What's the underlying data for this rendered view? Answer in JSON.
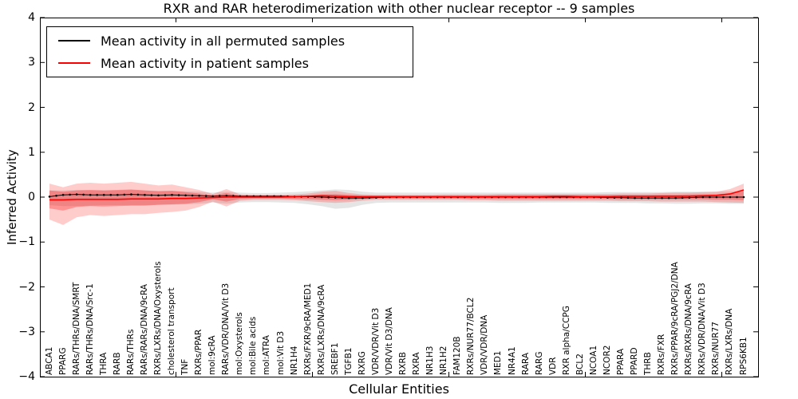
{
  "figure": {
    "title": "RXR and RAR heterodimerization with other nuclear receptor -- 9 samples",
    "xlabel": "Cellular Entities",
    "ylabel": "Inferred Activity"
  },
  "legend": {
    "entries": [
      {
        "label": "Mean activity in all permuted samples",
        "color": "#000000"
      },
      {
        "label": "Mean activity in patient samples",
        "color": "#ff0000"
      }
    ]
  },
  "chart_data": {
    "type": "line",
    "title": "RXR and RAR heterodimerization with other nuclear receptor -- 9 samples",
    "xlabel": "Cellular Entities",
    "ylabel": "Inferred Activity",
    "ylim": [
      -4,
      4
    ],
    "yticks": [
      4,
      3,
      2,
      1,
      0,
      -1,
      -2,
      -3,
      -4
    ],
    "ytick_labels": [
      "4",
      "3",
      "2",
      "1",
      "0",
      "−1",
      "−2",
      "−3",
      "−4"
    ],
    "grid": false,
    "legend_position": "upper left",
    "colors": {
      "permuted_line": "#000000",
      "patient_line": "#ff0000",
      "permuted_band": "#000000",
      "patient_band": "#ff0000"
    },
    "categories": [
      "ABCA1",
      "PPARG",
      "RARs/THRs/DNA/SMRT",
      "RARs/THRs/DNA/Src-1",
      "THRA",
      "RARB",
      "RARs/THRs",
      "RARs/RARs/DNA/9cRA",
      "RXRs/LXRs/DNA/Oxysterols",
      "cholesterol transport",
      "TNF",
      "RXRs/PPAR",
      "mol:9cRA",
      "RARs/VDR/DNA/Vit D3",
      "mol:Oxysterols",
      "mol:Bile acids",
      "mol:ATRA",
      "mol:Vit D3",
      "NR1H4",
      "RXRs/FXR/9cRA/MED1",
      "RXRs/LXRs/DNA/9cRA",
      "SREBF1",
      "TGFB1",
      "RXRG",
      "VDR/VDR/Vit D3",
      "VDR/Vit D3/DNA",
      "RXRB",
      "RXRA",
      "NR1H3",
      "NR1H2",
      "FAM120B",
      "RXRs/NUR77/BCL2",
      "VDR/VDR/DNA",
      "MED1",
      "NR4A1",
      "RARA",
      "RARG",
      "VDR",
      "RXR alpha/CCPG",
      "BCL2",
      "NCOA1",
      "NCOR2",
      "PPARA",
      "PPARD",
      "THRB",
      "RXRs/FXR",
      "RXRs/PPAR/9cRA/PGJ2/DNA",
      "RXRs/RXRs/DNA/9cRA",
      "RXRs/VDR/DNA/Vit D3",
      "RXRs/NUR77",
      "RXRs/LXRs/DNA",
      "RPS6KB1"
    ],
    "series": [
      {
        "name": "Mean activity in all permuted samples",
        "color": "#000000",
        "style": "solid-with-dot-markers",
        "values": [
          0.01,
          0.05,
          0.06,
          0.05,
          0.05,
          0.05,
          0.06,
          0.05,
          0.04,
          0.05,
          0.04,
          0.03,
          0.02,
          0.03,
          0.02,
          0.02,
          0.02,
          0.02,
          0.01,
          0.01,
          0.0,
          -0.01,
          -0.02,
          -0.02,
          -0.01,
          0.0,
          0.0,
          0.0,
          0.0,
          0.0,
          0.0,
          0.0,
          0.0,
          0.0,
          0.0,
          0.0,
          0.0,
          0.0,
          0.0,
          0.0,
          0.0,
          -0.01,
          -0.01,
          -0.02,
          -0.02,
          -0.02,
          -0.02,
          -0.01,
          0.0,
          0.0,
          0.0,
          0.0
        ]
      },
      {
        "name": "Mean activity in patient samples",
        "color": "#ff0000",
        "style": "solid",
        "values": [
          -0.06,
          -0.06,
          -0.05,
          -0.05,
          -0.05,
          -0.05,
          -0.04,
          -0.04,
          -0.04,
          -0.03,
          -0.03,
          -0.02,
          -0.01,
          0.0,
          0.0,
          0.0,
          0.0,
          0.0,
          0.01,
          0.02,
          0.03,
          0.02,
          0.01,
          0.01,
          0.01,
          0.01,
          0.01,
          0.01,
          0.01,
          0.01,
          0.01,
          0.01,
          0.01,
          0.01,
          0.01,
          0.01,
          0.01,
          0.02,
          0.02,
          0.01,
          0.01,
          0.01,
          0.02,
          0.02,
          0.02,
          0.02,
          0.02,
          0.02,
          0.03,
          0.04,
          0.07,
          0.16
        ]
      }
    ],
    "bands": [
      {
        "name": "permuted-samples-range",
        "color": "#000000",
        "opacity": 0.1,
        "low": [
          -0.18,
          -0.2,
          -0.2,
          -0.19,
          -0.18,
          -0.18,
          -0.18,
          -0.18,
          -0.17,
          -0.17,
          -0.16,
          -0.15,
          -0.12,
          -0.15,
          -0.12,
          -0.11,
          -0.11,
          -0.12,
          -0.13,
          -0.16,
          -0.2,
          -0.26,
          -0.24,
          -0.17,
          -0.13,
          -0.12,
          -0.12,
          -0.12,
          -0.12,
          -0.12,
          -0.12,
          -0.12,
          -0.12,
          -0.13,
          -0.13,
          -0.13,
          -0.12,
          -0.12,
          -0.12,
          -0.12,
          -0.12,
          -0.13,
          -0.13,
          -0.13,
          -0.14,
          -0.14,
          -0.15,
          -0.15,
          -0.14,
          -0.14,
          -0.15,
          -0.15
        ],
        "high": [
          0.15,
          0.15,
          0.16,
          0.15,
          0.15,
          0.15,
          0.16,
          0.15,
          0.14,
          0.14,
          0.13,
          0.12,
          0.1,
          0.12,
          0.1,
          0.09,
          0.09,
          0.1,
          0.11,
          0.13,
          0.15,
          0.17,
          0.16,
          0.12,
          0.1,
          0.1,
          0.1,
          0.1,
          0.1,
          0.1,
          0.1,
          0.1,
          0.1,
          0.1,
          0.1,
          0.1,
          0.1,
          0.1,
          0.1,
          0.1,
          0.1,
          0.11,
          0.11,
          0.11,
          0.11,
          0.11,
          0.12,
          0.12,
          0.12,
          0.12,
          0.13,
          0.13
        ]
      },
      {
        "name": "patient-samples-range-outer",
        "color": "#ff0000",
        "opacity": 0.2,
        "low": [
          -0.5,
          -0.62,
          -0.45,
          -0.4,
          -0.42,
          -0.4,
          -0.38,
          -0.38,
          -0.35,
          -0.33,
          -0.3,
          -0.22,
          -0.1,
          -0.21,
          -0.08,
          -0.06,
          -0.06,
          -0.06,
          -0.07,
          -0.09,
          -0.11,
          -0.13,
          -0.11,
          -0.08,
          -0.06,
          -0.06,
          -0.06,
          -0.06,
          -0.06,
          -0.06,
          -0.06,
          -0.07,
          -0.07,
          -0.08,
          -0.08,
          -0.08,
          -0.08,
          -0.08,
          -0.08,
          -0.08,
          -0.08,
          -0.08,
          -0.09,
          -0.09,
          -0.09,
          -0.1,
          -0.1,
          -0.1,
          -0.1,
          -0.11,
          -0.12,
          -0.13
        ],
        "high": [
          0.3,
          0.22,
          0.3,
          0.32,
          0.3,
          0.32,
          0.34,
          0.3,
          0.26,
          0.28,
          0.22,
          0.16,
          0.07,
          0.18,
          0.06,
          0.05,
          0.05,
          0.05,
          0.06,
          0.08,
          0.12,
          0.14,
          0.09,
          0.06,
          0.05,
          0.05,
          0.05,
          0.05,
          0.05,
          0.06,
          0.06,
          0.06,
          0.06,
          0.07,
          0.07,
          0.07,
          0.07,
          0.07,
          0.07,
          0.07,
          0.07,
          0.07,
          0.08,
          0.08,
          0.08,
          0.09,
          0.1,
          0.1,
          0.11,
          0.12,
          0.18,
          0.3
        ]
      },
      {
        "name": "patient-samples-range-inner",
        "color": "#ff0000",
        "opacity": 0.28,
        "low": [
          -0.25,
          -0.3,
          -0.22,
          -0.2,
          -0.21,
          -0.2,
          -0.19,
          -0.19,
          -0.17,
          -0.16,
          -0.15,
          -0.11,
          -0.05,
          -0.1,
          -0.04,
          -0.03,
          -0.03,
          -0.03,
          -0.04,
          -0.05,
          -0.06,
          -0.07,
          -0.06,
          -0.04,
          -0.03,
          -0.03,
          -0.03,
          -0.03,
          -0.03,
          -0.03,
          -0.03,
          -0.04,
          -0.04,
          -0.04,
          -0.04,
          -0.04,
          -0.04,
          -0.04,
          -0.04,
          -0.04,
          -0.04,
          -0.04,
          -0.05,
          -0.05,
          -0.05,
          -0.05,
          -0.05,
          -0.05,
          -0.05,
          -0.06,
          -0.06,
          -0.07
        ],
        "high": [
          0.15,
          0.12,
          0.15,
          0.16,
          0.15,
          0.16,
          0.17,
          0.15,
          0.13,
          0.14,
          0.11,
          0.08,
          0.04,
          0.09,
          0.03,
          0.03,
          0.03,
          0.03,
          0.03,
          0.04,
          0.06,
          0.07,
          0.05,
          0.03,
          0.03,
          0.03,
          0.03,
          0.03,
          0.03,
          0.03,
          0.03,
          0.03,
          0.03,
          0.04,
          0.04,
          0.04,
          0.04,
          0.04,
          0.04,
          0.04,
          0.04,
          0.04,
          0.04,
          0.04,
          0.04,
          0.05,
          0.05,
          0.06,
          0.06,
          0.06,
          0.09,
          0.17
        ]
      }
    ]
  }
}
